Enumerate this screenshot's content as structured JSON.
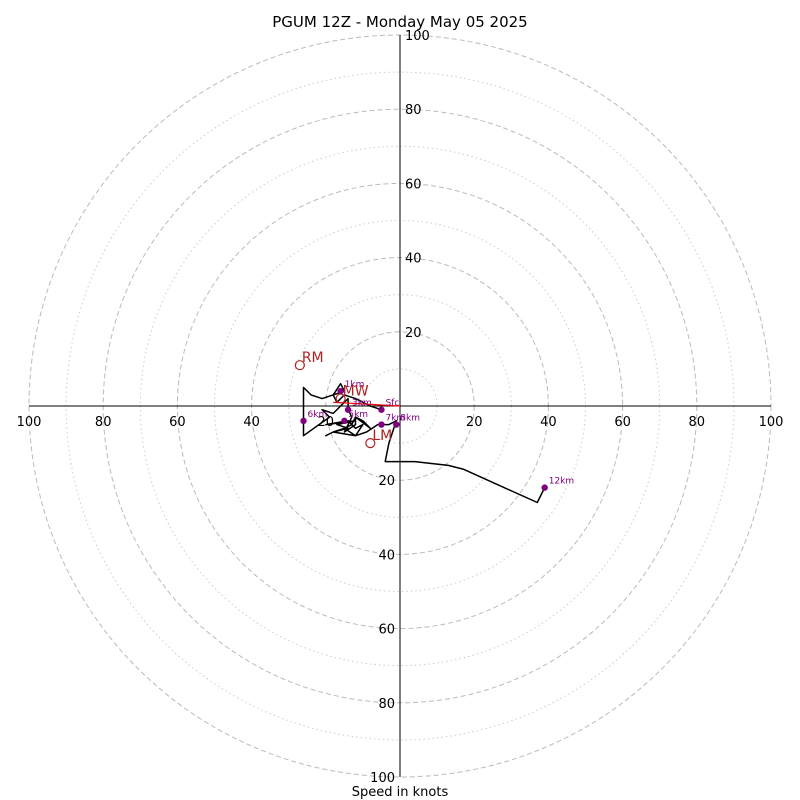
{
  "chart_data": {
    "type": "hodograph",
    "title": "PGUM 12Z - Monday May 05 2025",
    "xlabel": "Speed in knots",
    "range": [
      -100,
      100
    ],
    "ring_labels": [
      {
        "value": 100,
        "text": "100"
      },
      {
        "value": 80,
        "text": "80"
      },
      {
        "value": 60,
        "text": "60"
      },
      {
        "value": 40,
        "text": "40"
      },
      {
        "value": 20,
        "text": "20"
      }
    ],
    "dashed_rings": [
      20,
      40,
      60,
      80,
      100
    ],
    "dotted_rings": [
      10,
      30,
      50,
      70,
      90
    ],
    "grid": true,
    "colors": {
      "trace": "#000000",
      "height_marker": "#800080",
      "storm_motion": "#b22222",
      "shear_line": "#ff0000",
      "grid": "#bbbbbb"
    },
    "trace": [
      [
        -5,
        -1
      ],
      [
        -8,
        0
      ],
      [
        -12,
        2
      ],
      [
        -15,
        3
      ],
      [
        -17,
        1
      ],
      [
        -18,
        3
      ],
      [
        -16,
        6
      ],
      [
        -15,
        4
      ],
      [
        -21,
        2
      ],
      [
        -24,
        3
      ],
      [
        -26,
        5
      ],
      [
        -26,
        -3
      ],
      [
        -26,
        -8
      ],
      [
        -19,
        -3
      ],
      [
        -21,
        -1
      ],
      [
        -18,
        -2
      ],
      [
        -16,
        0
      ],
      [
        -14,
        2
      ],
      [
        -14,
        -1
      ],
      [
        -13,
        -3
      ],
      [
        -14,
        -5
      ],
      [
        -15,
        -7
      ],
      [
        -12,
        -5
      ],
      [
        -12,
        -3
      ],
      [
        -10,
        -4
      ],
      [
        -8,
        -6
      ],
      [
        -12,
        -3
      ],
      [
        -13,
        -5
      ],
      [
        -15,
        -6
      ],
      [
        -18,
        -7
      ],
      [
        -14,
        -6
      ],
      [
        -17,
        -5
      ],
      [
        -12,
        -4
      ],
      [
        -20,
        -5
      ],
      [
        -14,
        -4
      ],
      [
        -12,
        -6
      ],
      [
        -10,
        -5
      ],
      [
        -12,
        -8
      ],
      [
        -18,
        -7
      ],
      [
        -20,
        -8
      ],
      [
        -18,
        -7
      ],
      [
        -15,
        -6
      ],
      [
        -12,
        -8
      ],
      [
        -9,
        -7
      ],
      [
        -6,
        -5
      ],
      [
        -5,
        -5
      ],
      [
        -3,
        -5
      ],
      [
        -1,
        -4
      ],
      [
        -2,
        -7
      ],
      [
        -3,
        -10
      ],
      [
        -4,
        -15
      ],
      [
        4,
        -15
      ],
      [
        13,
        -16
      ],
      [
        17,
        -17
      ],
      [
        37,
        -26
      ],
      [
        39,
        -22
      ]
    ],
    "height_markers": [
      {
        "label": "Sfc",
        "u": -5,
        "v": -1
      },
      {
        "label": "1km",
        "u": -16,
        "v": 4
      },
      {
        "label": "3km",
        "u": -14,
        "v": -1
      },
      {
        "label": "5km",
        "u": -15,
        "v": -4
      },
      {
        "label": "6km",
        "u": -26,
        "v": -4
      },
      {
        "label": "7km",
        "u": -5,
        "v": -5
      },
      {
        "label": "8km",
        "u": -1,
        "v": -5
      },
      {
        "label": "12km",
        "u": 39,
        "v": -22
      }
    ],
    "storm_motion": [
      {
        "label": "RM",
        "u": -27,
        "v": 11
      },
      {
        "label": "LM",
        "u": -8,
        "v": -10
      },
      {
        "label": "MW",
        "u": -16,
        "v": 2
      }
    ],
    "shear_vector": {
      "from": [
        -18,
        1
      ],
      "to": [
        0,
        0
      ]
    }
  }
}
